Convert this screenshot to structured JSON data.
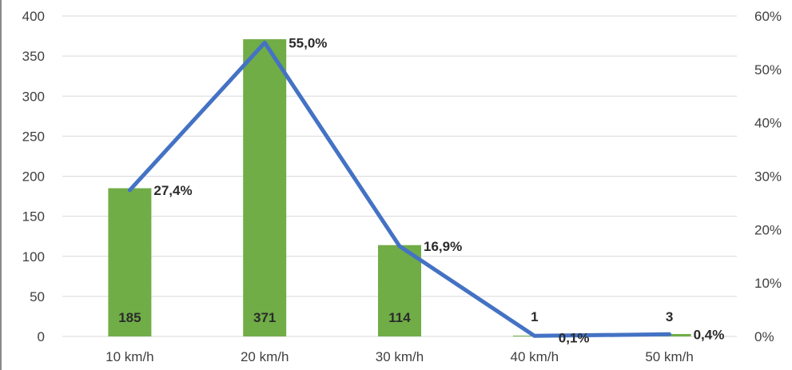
{
  "chart_data": {
    "type": "bar",
    "categories": [
      "10 km/h",
      "20 km/h",
      "30 km/h",
      "40 km/h",
      "50 km/h"
    ],
    "series": [
      {
        "type": "bar",
        "axis": "left",
        "values": [
          185,
          371,
          114,
          1,
          3
        ],
        "value_labels": [
          "185",
          "371",
          "114",
          "1",
          "3"
        ],
        "color": "#70ad47"
      },
      {
        "type": "line",
        "axis": "right",
        "values": [
          27.4,
          55.0,
          16.9,
          0.1,
          0.4
        ],
        "value_labels": [
          "27,4%",
          "55,0%",
          "16,9%",
          "0,1%",
          "0,4%"
        ],
        "color": "#4472c4"
      }
    ],
    "y_left": {
      "range": [
        0,
        400
      ],
      "ticks": [
        "0",
        "50",
        "100",
        "150",
        "200",
        "250",
        "300",
        "350",
        "400"
      ]
    },
    "y_right": {
      "range": [
        0,
        60
      ],
      "ticks": [
        "0%",
        "10%",
        "20%",
        "30%",
        "40%",
        "50%",
        "60%"
      ]
    },
    "grid": true,
    "gridColor": "#d9d9d9",
    "title": "",
    "xlabel": "",
    "ylabel": "",
    "legend": "none"
  }
}
